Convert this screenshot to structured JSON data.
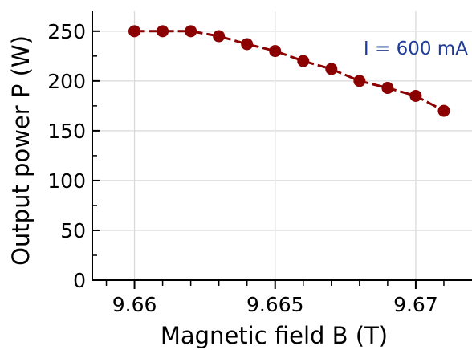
{
  "chart_data": {
    "type": "line",
    "title": "",
    "xlabel": "Magnetic field B (T)",
    "ylabel": "Output power P (W)",
    "xlim": [
      9.6585,
      9.672
    ],
    "ylim": [
      0,
      270
    ],
    "x_ticks": [
      9.66,
      9.665,
      9.67
    ],
    "x_tick_labels": [
      "9.66",
      "9.665",
      "9.67"
    ],
    "x_minor_ticks": [
      9.659,
      9.661,
      9.662,
      9.663,
      9.664,
      9.666,
      9.667,
      9.668,
      9.669,
      9.671
    ],
    "y_ticks": [
      0,
      50,
      100,
      150,
      200,
      250
    ],
    "y_tick_labels": [
      "0",
      "50",
      "100",
      "150",
      "200",
      "250"
    ],
    "y_minor_ticks": [
      25,
      75,
      125,
      175,
      225
    ],
    "grid": true,
    "series": [
      {
        "color": "#8b0000",
        "x": [
          9.66,
          9.661,
          9.662,
          9.663,
          9.664,
          9.665,
          9.666,
          9.667,
          9.668,
          9.669,
          9.67,
          9.671
        ],
        "y": [
          250,
          250,
          250,
          245,
          237,
          230,
          220,
          212,
          200,
          193,
          185,
          170
        ]
      }
    ],
    "annotation": {
      "text": "I = 600 mA",
      "color": "#1f3c99",
      "x": 9.67,
      "y": 233
    }
  }
}
